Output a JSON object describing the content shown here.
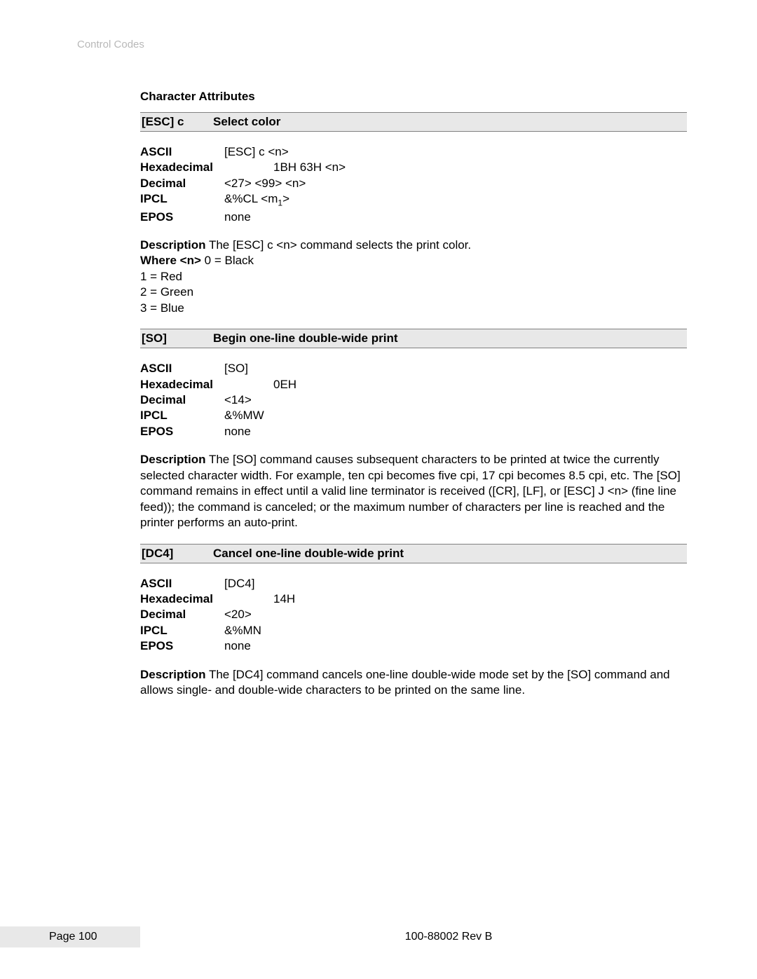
{
  "header": {
    "text": "Control Codes"
  },
  "section_title": "Character Attributes",
  "cmd1": {
    "code": "[ESC] c",
    "title": "Select color",
    "ascii_label": "ASCII",
    "ascii_val": "[ESC] c <n>",
    "hex_label": "Hexadecimal",
    "hex_val": "1BH 63H <n>",
    "dec_label": "Decimal",
    "dec_val": "<27> <99> <n>",
    "ipcl_label": "IPCL",
    "ipcl_val_pre": "&%CL <m",
    "ipcl_sub": "1",
    "ipcl_val_post": ">",
    "epos_label": "EPOS",
    "epos_val": "none",
    "desc_label": "Description",
    "desc_text": "  The [ESC] c <n> command selects the print color.",
    "where_label": "Where <n>",
    "where0": " 0 = Black",
    "where1": "1 = Red",
    "where2": "2 = Green",
    "where3": "3 = Blue"
  },
  "cmd2": {
    "code": " [SO]",
    "title": "Begin one-line double-wide print",
    "ascii_label": "ASCII",
    "ascii_val": "[SO]",
    "hex_label": "Hexadecimal",
    "hex_val": "0EH",
    "dec_label": "Decimal",
    "dec_val": "<14>",
    "ipcl_label": "IPCL",
    "ipcl_val": "&%MW",
    "epos_label": "EPOS",
    "epos_val": "none",
    "desc_label": "Description",
    "desc_text": "  The [SO] command causes subsequent characters to be printed at twice the currently selected character width.  For example, ten cpi becomes five cpi, 17 cpi becomes 8.5 cpi, etc.  The [SO] command remains in effect until a valid line terminator is received ([CR], [LF], or [ESC] J <n> (fine line feed)); the command is canceled; or the maximum number of characters per line is reached and the printer performs an auto-print."
  },
  "cmd3": {
    "code": "[DC4]",
    "title": "Cancel one-line double-wide print",
    "ascii_label": "ASCII",
    "ascii_val": "[DC4]",
    "hex_label": "Hexadecimal",
    "hex_val": "14H",
    "dec_label": "Decimal",
    "dec_val": "<20>",
    "ipcl_label": "IPCL",
    "ipcl_val": "&%MN",
    "epos_label": "EPOS",
    "epos_val": "none",
    "desc_label": "Description",
    "desc_text": "  The [DC4] command cancels one-line double-wide mode set by the [SO] command and allows single- and double-wide characters to be printed on the same line."
  },
  "footer": {
    "page": "Page 100",
    "doc": "100-88002 Rev B"
  }
}
